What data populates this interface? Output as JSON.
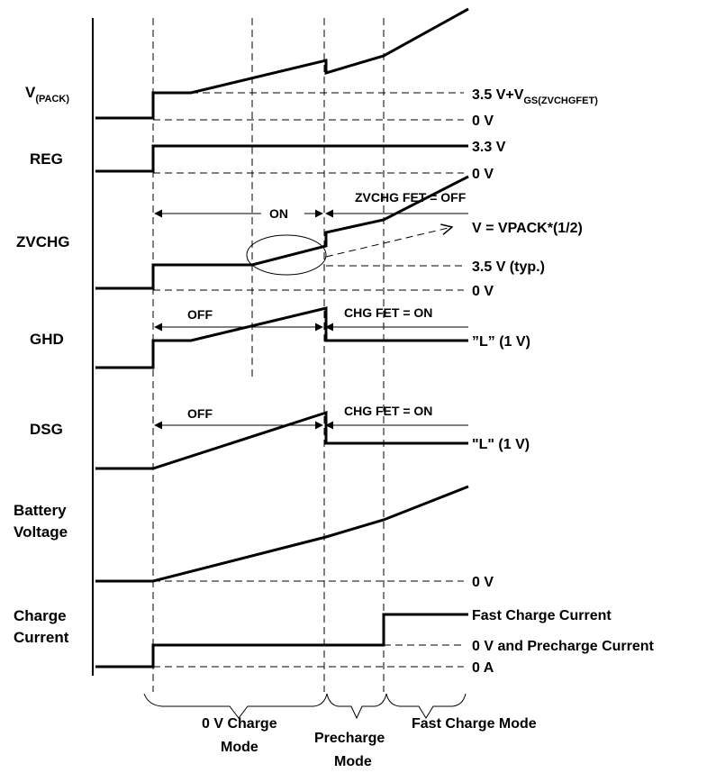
{
  "signals": {
    "vpack": {
      "main": "V",
      "sub": "(PACK)"
    },
    "reg": "REG",
    "zvchg": "ZVCHG",
    "ghd": "GHD",
    "dsg": "DSG",
    "battery_line1": "Battery",
    "battery_line2": "Voltage",
    "charge_line1": "Charge",
    "charge_line2": "Current"
  },
  "levels": {
    "vpack_high": {
      "main": "3.5 V+V",
      "sub": "GS(ZVCHGFET)"
    },
    "vpack_zero": "0 V",
    "reg_high": "3.3 V",
    "reg_zero": "0 V",
    "zvchg_half": "V = VPACK*(1/2)",
    "zvchg_typ": "3.5 V (typ.)",
    "zvchg_zero": "0 V",
    "ghd_low": "”L” (1 V)",
    "dsg_low": "\"L\" (1 V)",
    "battery_zero": "0 V",
    "fast_current": "Fast Charge Current",
    "precharge_current": "0 V and Precharge Current",
    "zero_amp": "0 A"
  },
  "annotations": {
    "zvchg_on": "ON",
    "zvchg_fet_off": "ZVCHG FET = OFF",
    "ghd_off": "OFF",
    "ghd_chg_on": "CHG FET = ON",
    "dsg_off": "OFF",
    "dsg_chg_on": "CHG FET = ON"
  },
  "modes": {
    "zero_v_line1": "0 V Charge",
    "zero_v_line2": "Mode",
    "precharge_line1": "Precharge",
    "precharge_line2": "Mode",
    "fast_charge": "Fast Charge Mode"
  }
}
